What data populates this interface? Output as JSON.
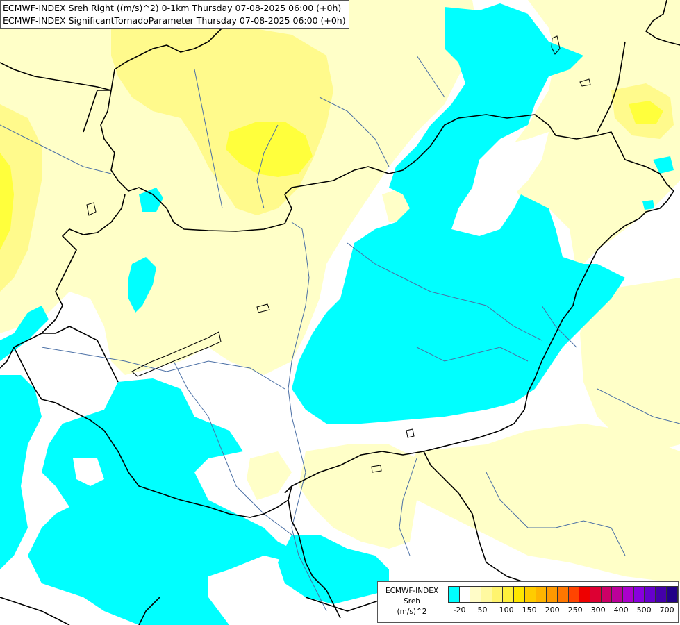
{
  "title": {
    "line1": "ECMWF-INDEX Sreh Right ((m/s)^2) 0-1km Thursday 07-08-2025 06:00 (+0h)",
    "line2": "ECMWF-INDEX SignificantTornadoParameter Thursday 07-08-2025 06:00 (+0h)"
  },
  "legend": {
    "line1": "ECMWF-INDEX",
    "line2": "Sreh",
    "line3": "(m/s)^2",
    "colors": [
      "#00ffff",
      "#ffffff",
      "#fffcc8",
      "#fff9a0",
      "#fff46e",
      "#fff03c",
      "#ffe600",
      "#ffcc00",
      "#ffb400",
      "#ff9900",
      "#ff7700",
      "#ff4400",
      "#ee0000",
      "#dd0033",
      "#cc0066",
      "#bb0099",
      "#aa00cc",
      "#8800dd",
      "#6600cc",
      "#4400aa",
      "#220088"
    ],
    "ticks": [
      "-20",
      "50",
      "100",
      "150",
      "200",
      "250",
      "300",
      "400",
      "500",
      "700"
    ]
  },
  "map": {
    "colors": {
      "cyan": "#00ffff",
      "pale_yellow": "#ffffc8",
      "yellow": "#fffa8c",
      "strong_yellow": "#ffff3c",
      "border": "#000000",
      "river": "#4a6fa5"
    }
  }
}
